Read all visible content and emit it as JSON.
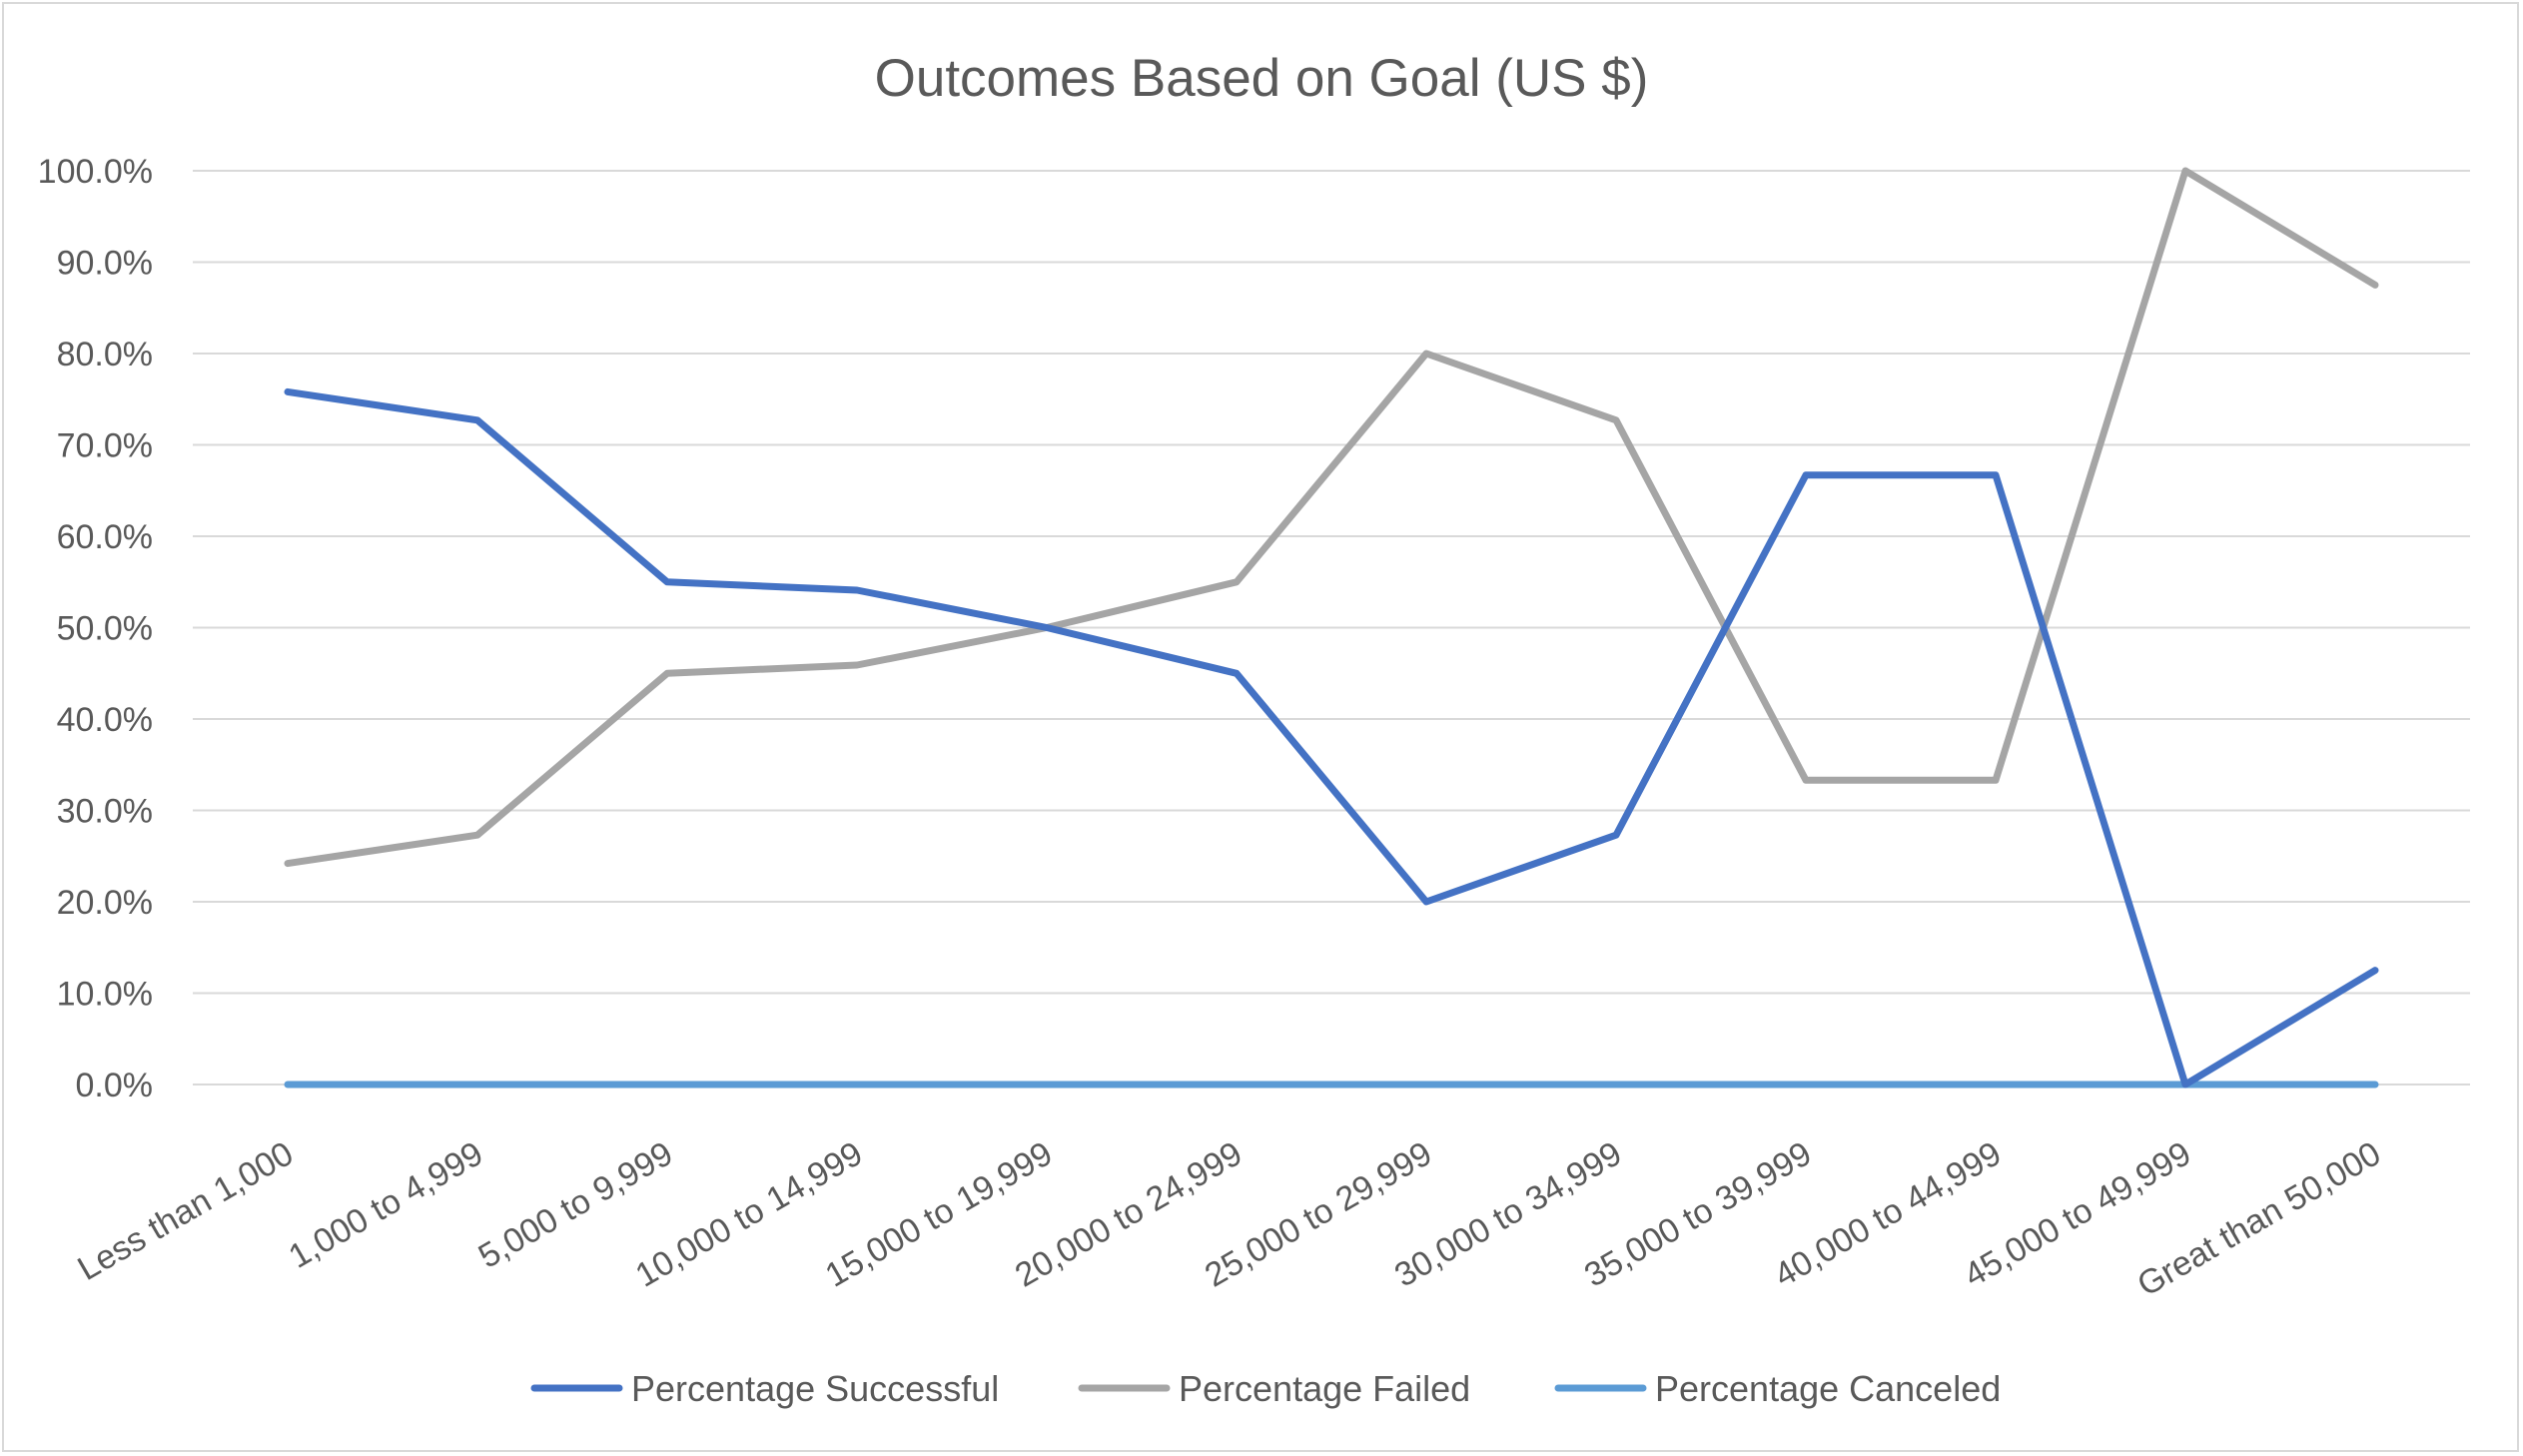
{
  "chart_data": {
    "type": "line",
    "title": "Outcomes Based on Goal (US $)",
    "xlabel": "",
    "ylabel": "",
    "categories": [
      "Less than 1,000",
      "1,000 to 4,999",
      "5,000 to 9,999",
      "10,000 to 14,999",
      "15,000 to 19,999",
      "20,000 to 24,999",
      "25,000 to 29,999",
      "30,000 to 34,999",
      "35,000 to 39,999",
      "40,000 to 44,999",
      "45,000 to 49,999",
      "Great than 50,000"
    ],
    "ylim": [
      0,
      100
    ],
    "yticks": [
      "0.0%",
      "10.0%",
      "20.0%",
      "30.0%",
      "40.0%",
      "50.0%",
      "60.0%",
      "70.0%",
      "80.0%",
      "90.0%",
      "100.0%"
    ],
    "grid": true,
    "legend_position": "bottom",
    "series": [
      {
        "name": "Percentage Successful",
        "color": "#4472c4",
        "values": [
          75.8,
          72.7,
          55.0,
          54.1,
          50.0,
          45.0,
          20.0,
          27.3,
          66.7,
          66.7,
          0.0,
          12.5
        ]
      },
      {
        "name": "Percentage Failed",
        "color": "#a5a5a5",
        "values": [
          24.2,
          27.3,
          45.0,
          45.9,
          50.0,
          55.0,
          80.0,
          72.7,
          33.3,
          33.3,
          100.0,
          87.5
        ]
      },
      {
        "name": "Percentage Canceled",
        "color": "#5b9bd5",
        "values": [
          0,
          0,
          0,
          0,
          0,
          0,
          0,
          0,
          0,
          0,
          0,
          0
        ]
      }
    ]
  }
}
